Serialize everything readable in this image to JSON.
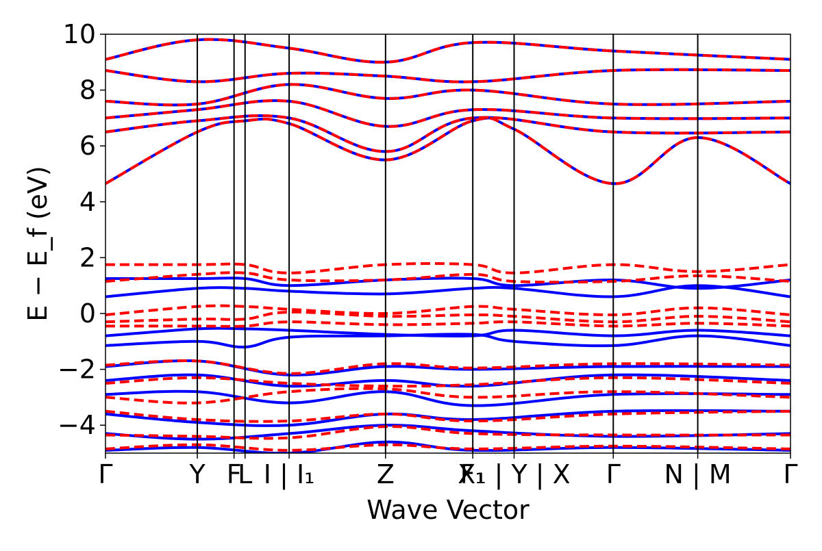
{
  "chart_data": {
    "type": "line",
    "title": "",
    "xlabel": "Wave Vector",
    "ylabel": "E − E_f (eV)",
    "ylim": [
      -5,
      10
    ],
    "yticks": [
      -4,
      -2,
      0,
      2,
      4,
      6,
      8,
      10
    ],
    "ytick_labels": [
      "−4",
      "−2",
      "0",
      "2",
      "4",
      "6",
      "8",
      "10"
    ],
    "grid": false,
    "legend": "none",
    "colors": {
      "solid": "#0000ff",
      "dashed": "#ff0000",
      "kpath_line": "#000000"
    },
    "kpath": {
      "positions": [
        0,
        1.0,
        1.4,
        1.52,
        2.0,
        3.05,
        4.0,
        4.45,
        5.53,
        6.45,
        7.46
      ],
      "labels": [
        "Γ",
        "Y",
        "F",
        "L",
        "I | I₁",
        "Z",
        "F₁",
        "X₁ | Y | X",
        "Γ",
        "N | M",
        "Γ"
      ],
      "x_range": [
        0,
        7.46
      ]
    },
    "series": [
      {
        "style": "solid",
        "bands": [
          {
            "k": [
              0,
              1.0,
              1.52,
              2.0,
              3.05,
              4.0,
              4.45,
              5.53,
              6.45,
              7.46
            ],
            "e": [
              4.65,
              6.5,
              6.9,
              6.8,
              5.5,
              6.9,
              6.6,
              4.65,
              6.3,
              4.65
            ]
          },
          {
            "k": [
              0,
              1.0,
              2.0,
              3.05,
              4.0,
              5.53,
              7.46
            ],
            "e": [
              6.5,
              6.9,
              7.0,
              5.8,
              7.0,
              6.5,
              6.5
            ]
          },
          {
            "k": [
              0,
              1.0,
              2.0,
              3.05,
              4.0,
              5.53,
              7.46
            ],
            "e": [
              7.0,
              7.3,
              7.6,
              6.7,
              7.3,
              7.0,
              7.0
            ]
          },
          {
            "k": [
              0,
              1.0,
              2.0,
              3.05,
              4.0,
              5.53,
              7.46
            ],
            "e": [
              7.6,
              7.5,
              8.2,
              7.7,
              8.0,
              7.5,
              7.6
            ]
          },
          {
            "k": [
              0,
              1.0,
              2.0,
              3.05,
              4.0,
              5.53,
              7.46
            ],
            "e": [
              8.7,
              8.3,
              8.6,
              8.5,
              8.3,
              8.7,
              8.7
            ]
          },
          {
            "k": [
              0,
              1.0,
              2.0,
              3.05,
              4.0,
              5.53,
              7.46
            ],
            "e": [
              9.1,
              9.8,
              9.5,
              9.0,
              9.7,
              9.4,
              9.1
            ]
          },
          {
            "k": [
              0,
              1.0,
              1.52,
              2.0,
              3.05,
              4.0,
              4.45,
              5.53,
              6.45,
              7.46
            ],
            "e": [
              1.25,
              1.25,
              1.25,
              1.0,
              1.2,
              1.25,
              1.0,
              1.2,
              0.9,
              1.2
            ]
          },
          {
            "k": [
              0,
              1.0,
              1.52,
              2.0,
              3.05,
              4.0,
              4.45,
              5.53,
              6.45,
              7.46
            ],
            "e": [
              0.6,
              0.9,
              0.9,
              0.8,
              0.7,
              0.9,
              0.9,
              0.6,
              1.0,
              0.6
            ]
          },
          {
            "k": [
              0,
              1.0,
              1.52,
              2.0,
              3.05,
              4.0,
              4.45,
              5.53,
              6.45,
              7.46
            ],
            "e": [
              -0.8,
              -0.55,
              -0.55,
              -0.6,
              -0.75,
              -0.8,
              -0.6,
              -0.8,
              -0.6,
              -0.8
            ]
          },
          {
            "k": [
              0,
              1.0,
              1.52,
              2.0,
              3.05,
              4.0,
              4.45,
              5.53,
              6.45,
              7.46
            ],
            "e": [
              -1.15,
              -1.0,
              -1.2,
              -0.85,
              -0.8,
              -0.75,
              -1.0,
              -1.15,
              -0.8,
              -1.15
            ]
          },
          {
            "k": [
              0,
              1.0,
              2.0,
              3.05,
              4.0,
              5.53,
              7.46
            ],
            "e": [
              -1.9,
              -1.7,
              -2.2,
              -1.9,
              -2.0,
              -1.9,
              -1.9
            ]
          },
          {
            "k": [
              0,
              1.0,
              2.0,
              3.05,
              4.0,
              5.53,
              7.46
            ],
            "e": [
              -2.4,
              -2.2,
              -2.6,
              -2.4,
              -2.6,
              -2.2,
              -2.4
            ]
          },
          {
            "k": [
              0,
              1.0,
              2.0,
              3.05,
              4.0,
              5.53,
              7.46
            ],
            "e": [
              -2.9,
              -2.8,
              -3.2,
              -2.8,
              -3.3,
              -2.9,
              -2.9
            ]
          },
          {
            "k": [
              0,
              1.0,
              2.0,
              3.05,
              4.0,
              5.53,
              7.46
            ],
            "e": [
              -3.6,
              -3.9,
              -4.0,
              -3.6,
              -3.8,
              -3.5,
              -3.5
            ]
          },
          {
            "k": [
              0,
              1.0,
              2.0,
              3.05,
              4.0,
              5.53,
              7.46
            ],
            "e": [
              -4.3,
              -4.5,
              -4.3,
              -4.0,
              -4.2,
              -4.4,
              -4.3
            ]
          },
          {
            "k": [
              0,
              1.0,
              2.0,
              3.05,
              4.0,
              5.53,
              7.46
            ],
            "e": [
              -4.9,
              -4.8,
              -5.0,
              -4.6,
              -4.9,
              -4.8,
              -4.9
            ]
          }
        ]
      },
      {
        "style": "dashed",
        "bands": [
          {
            "k": [
              0,
              1.0,
              1.52,
              2.0,
              3.05,
              4.0,
              4.45,
              5.53,
              6.45,
              7.46
            ],
            "e": [
              4.65,
              6.5,
              6.9,
              6.8,
              5.5,
              6.9,
              6.6,
              4.65,
              6.3,
              4.65
            ]
          },
          {
            "k": [
              0,
              1.0,
              2.0,
              3.05,
              4.0,
              5.53,
              7.46
            ],
            "e": [
              6.5,
              6.9,
              7.0,
              5.8,
              7.0,
              6.5,
              6.5
            ]
          },
          {
            "k": [
              0,
              1.0,
              2.0,
              3.05,
              4.0,
              5.53,
              7.46
            ],
            "e": [
              7.0,
              7.3,
              7.6,
              6.7,
              7.3,
              7.0,
              7.0
            ]
          },
          {
            "k": [
              0,
              1.0,
              2.0,
              3.05,
              4.0,
              5.53,
              7.46
            ],
            "e": [
              7.6,
              7.5,
              8.2,
              7.7,
              8.0,
              7.5,
              7.6
            ]
          },
          {
            "k": [
              0,
              1.0,
              2.0,
              3.05,
              4.0,
              5.53,
              7.46
            ],
            "e": [
              8.7,
              8.3,
              8.6,
              8.5,
              8.3,
              8.7,
              8.7
            ]
          },
          {
            "k": [
              0,
              1.0,
              2.0,
              3.05,
              4.0,
              5.53,
              7.46
            ],
            "e": [
              9.1,
              9.8,
              9.5,
              9.0,
              9.7,
              9.4,
              9.1
            ]
          },
          {
            "k": [
              0,
              1.0,
              1.52,
              2.0,
              3.05,
              4.0,
              4.45,
              5.53,
              6.45,
              7.46
            ],
            "e": [
              1.75,
              1.75,
              1.75,
              1.45,
              1.75,
              1.75,
              1.45,
              1.75,
              1.5,
              1.75
            ]
          },
          {
            "k": [
              0,
              1.0,
              1.52,
              2.0,
              3.05,
              4.0,
              4.45,
              5.53,
              6.45,
              7.46
            ],
            "e": [
              1.15,
              1.4,
              1.45,
              1.2,
              1.2,
              1.4,
              1.15,
              1.15,
              1.35,
              1.15
            ]
          },
          {
            "k": [
              0,
              1.0,
              1.52,
              2.0,
              3.05,
              4.0,
              4.45,
              5.53,
              6.45,
              7.46
            ],
            "e": [
              -0.05,
              0.25,
              0.25,
              0.15,
              0.0,
              0.25,
              0.15,
              -0.05,
              0.2,
              -0.05
            ]
          },
          {
            "k": [
              0,
              1.0,
              1.52,
              2.0,
              3.05,
              4.0,
              4.45,
              5.53,
              6.45,
              7.46
            ],
            "e": [
              -0.3,
              -0.2,
              -0.2,
              0.05,
              -0.1,
              -0.05,
              -0.1,
              -0.3,
              -0.1,
              -0.3
            ]
          },
          {
            "k": [
              0,
              1.0,
              1.52,
              2.0,
              3.05,
              4.0,
              4.45,
              5.53,
              6.45,
              7.46
            ],
            "e": [
              -0.45,
              -0.45,
              -0.45,
              -0.3,
              -0.4,
              -0.35,
              -0.3,
              -0.45,
              -0.35,
              -0.45
            ]
          },
          {
            "k": [
              0,
              1.0,
              2.0,
              3.05,
              4.0,
              5.53,
              7.46
            ],
            "e": [
              -1.85,
              -1.7,
              -2.15,
              -1.8,
              -1.95,
              -1.8,
              -1.85
            ]
          },
          {
            "k": [
              0,
              1.0,
              2.0,
              3.05,
              4.0,
              5.53,
              7.46
            ],
            "e": [
              -2.5,
              -2.3,
              -2.5,
              -2.6,
              -2.55,
              -2.3,
              -2.5
            ]
          },
          {
            "k": [
              0,
              1.0,
              2.0,
              3.05,
              4.0,
              5.53,
              7.46
            ],
            "e": [
              -3.0,
              -3.2,
              -2.8,
              -2.7,
              -3.0,
              -2.8,
              -3.0
            ]
          },
          {
            "k": [
              0,
              1.0,
              2.0,
              3.05,
              4.0,
              5.53,
              7.46
            ],
            "e": [
              -3.5,
              -3.8,
              -3.85,
              -3.6,
              -3.85,
              -3.6,
              -3.5
            ]
          },
          {
            "k": [
              0,
              1.0,
              2.0,
              3.05,
              4.0,
              5.53,
              7.46
            ],
            "e": [
              -4.35,
              -4.4,
              -4.45,
              -4.05,
              -4.3,
              -4.35,
              -4.35
            ]
          },
          {
            "k": [
              0,
              1.0,
              2.0,
              3.05,
              4.0,
              5.53,
              7.46
            ],
            "e": [
              -4.85,
              -4.7,
              -4.9,
              -4.7,
              -4.85,
              -4.75,
              -4.85
            ]
          }
        ]
      }
    ]
  }
}
